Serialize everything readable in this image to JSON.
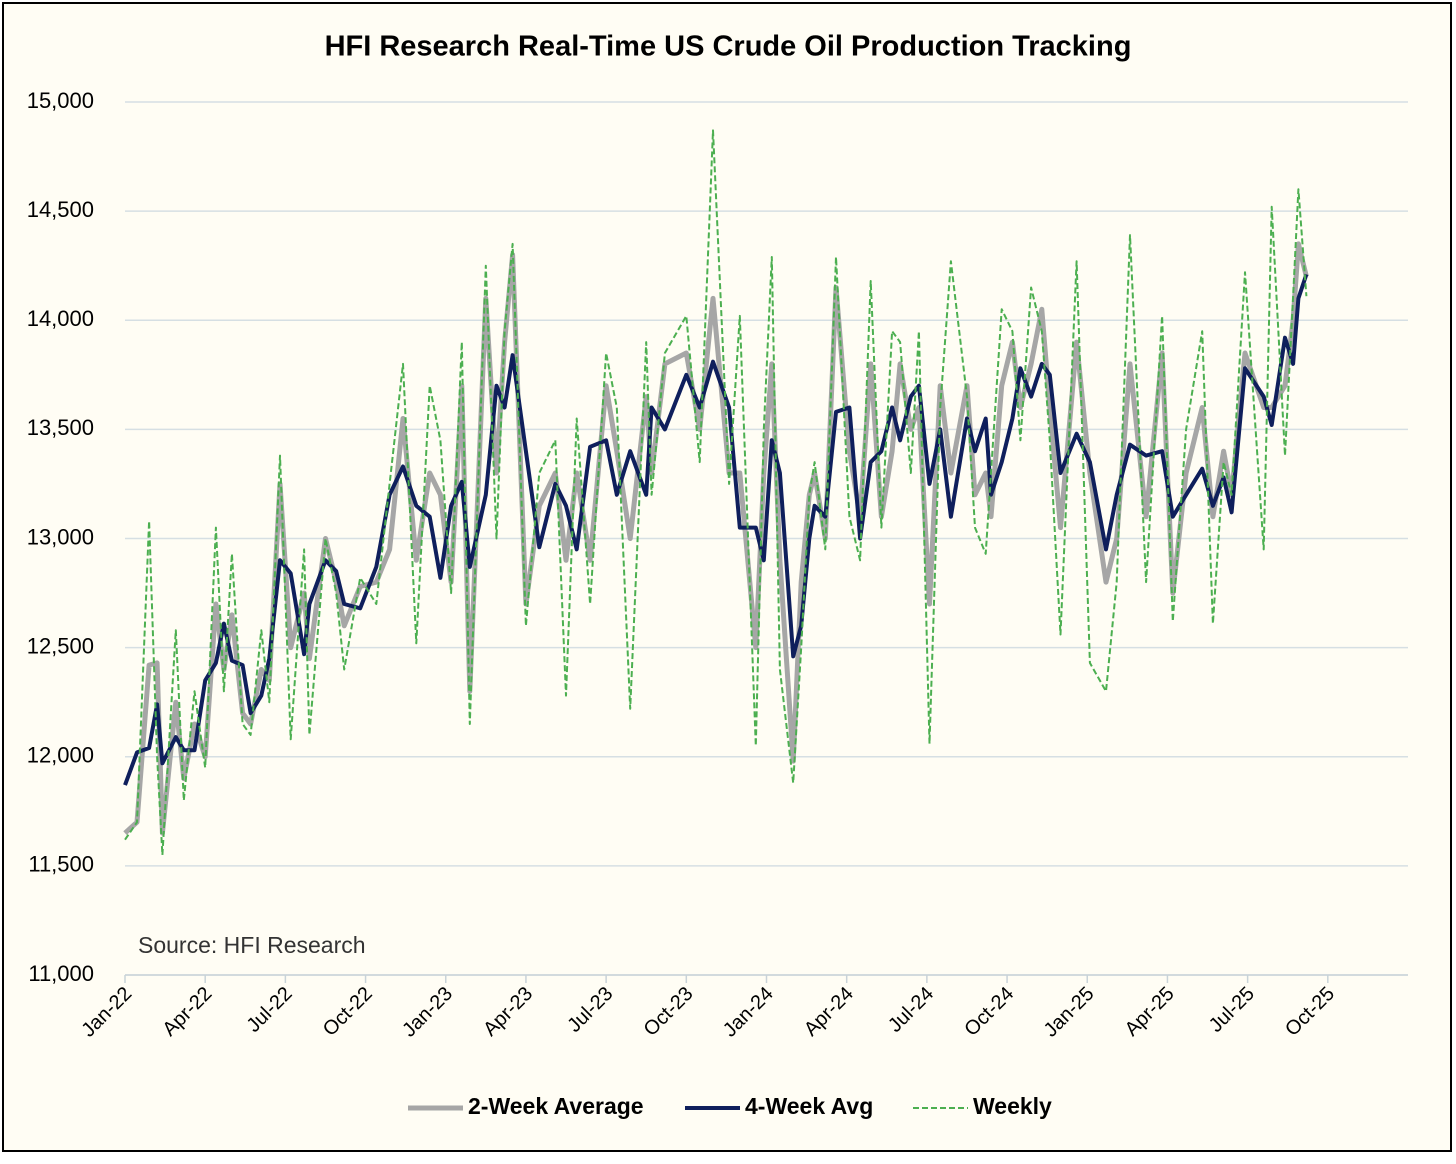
{
  "chart_data": {
    "type": "line",
    "title": "HFI Research Real-Time US Crude Oil Production Tracking",
    "annotation": "Source: HFI Research",
    "grid": true,
    "legend": "bottom",
    "xlim": [
      0,
      48
    ],
    "xticks": [
      {
        "value": 0,
        "label": "Jan-22"
      },
      {
        "value": 3,
        "label": "Apr-22"
      },
      {
        "value": 6,
        "label": "Jul-22"
      },
      {
        "value": 9,
        "label": "Oct-22"
      },
      {
        "value": 12,
        "label": "Jan-23"
      },
      {
        "value": 15,
        "label": "Apr-23"
      },
      {
        "value": 18,
        "label": "Jul-23"
      },
      {
        "value": 21,
        "label": "Oct-23"
      },
      {
        "value": 24,
        "label": "Jan-24"
      },
      {
        "value": 27,
        "label": "Apr-24"
      },
      {
        "value": 30,
        "label": "Jul-24"
      },
      {
        "value": 33,
        "label": "Oct-24"
      },
      {
        "value": 36,
        "label": "Jan-25"
      },
      {
        "value": 39,
        "label": "Apr-25"
      },
      {
        "value": 42,
        "label": "Jul-25"
      },
      {
        "value": 45,
        "label": "Oct-25"
      }
    ],
    "ylim": [
      11000,
      15000
    ],
    "yticks": [
      {
        "value": 11000,
        "label": "11,000"
      },
      {
        "value": 11500,
        "label": "11,500"
      },
      {
        "value": 12000,
        "label": "12,000"
      },
      {
        "value": 12500,
        "label": "12,500"
      },
      {
        "value": 13000,
        "label": "13,000"
      },
      {
        "value": 13500,
        "label": "13,500"
      },
      {
        "value": 14000,
        "label": "14,000"
      },
      {
        "value": 14500,
        "label": "14,500"
      },
      {
        "value": 15000,
        "label": "15,000"
      }
    ],
    "x": [
      0,
      0.45,
      0.9,
      1.2,
      1.4,
      1.9,
      2.2,
      2.6,
      3.0,
      3.4,
      3.7,
      4.0,
      4.4,
      4.7,
      5.1,
      5.4,
      5.8,
      6.2,
      6.7,
      6.9,
      7.5,
      7.9,
      8.2,
      8.8,
      9.4,
      9.9,
      10.4,
      10.9,
      11.4,
      11.8,
      12.2,
      12.6,
      12.9,
      13.5,
      13.9,
      14.2,
      14.5,
      15.0,
      15.5,
      16.1,
      16.5,
      16.9,
      17.4,
      18.0,
      18.4,
      18.9,
      19.5,
      19.7,
      20.2,
      21.0,
      21.5,
      22.0,
      22.6,
      23.0,
      23.6,
      23.9,
      24.2,
      24.5,
      25.0,
      25.3,
      25.6,
      25.8,
      26.2,
      26.6,
      27.1,
      27.5,
      27.9,
      28.3,
      28.7,
      29.0,
      29.4,
      29.7,
      30.1,
      30.5,
      30.9,
      31.5,
      31.8,
      32.2,
      32.4,
      32.8,
      33.2,
      33.5,
      33.9,
      34.3,
      34.6,
      35.0,
      35.6,
      36.1,
      36.7,
      37.1,
      37.6,
      38.2,
      38.8,
      39.2,
      39.7,
      40.3,
      40.7,
      41.1,
      41.4,
      41.9,
      42.6,
      42.9,
      43.4,
      43.7,
      43.9,
      44.2
    ],
    "series": [
      {
        "name": "2-Week Average",
        "color": "#a6a6a6",
        "values": [
          11650,
          11700,
          12420,
          12430,
          11650,
          12250,
          11900,
          12150,
          12000,
          12700,
          12400,
          12650,
          12200,
          12150,
          12400,
          12350,
          13250,
          12500,
          12750,
          12450,
          13000,
          12800,
          12600,
          12780,
          12800,
          12950,
          13550,
          12900,
          13300,
          13200,
          12800,
          13700,
          12300,
          14100,
          13300,
          13900,
          14300,
          12700,
          13150,
          13300,
          12900,
          13300,
          12900,
          13700,
          13400,
          13000,
          13650,
          13300,
          13800,
          13850,
          13500,
          14100,
          13300,
          13300,
          12500,
          13300,
          13800,
          12900,
          11980,
          12800,
          13200,
          13300,
          13000,
          14150,
          13400,
          13100,
          13800,
          13100,
          13400,
          13800,
          13500,
          13600,
          12700,
          13700,
          13300,
          13700,
          13200,
          13300,
          13100,
          13700,
          13900,
          13600,
          13800,
          14050,
          13600,
          13050,
          13900,
          13300,
          12800,
          13000,
          13800,
          13100,
          13850,
          12750,
          13300,
          13600,
          13100,
          13400,
          13200,
          13850,
          13600,
          13600,
          13700,
          14000,
          14350,
          14200
        ]
      },
      {
        "name": "4-Week Avg",
        "color": "#0f1f5c",
        "values": [
          11870,
          12020,
          12040,
          12240,
          11970,
          12090,
          12030,
          12030,
          12350,
          12430,
          12610,
          12440,
          12420,
          12200,
          12280,
          12450,
          12900,
          12840,
          12470,
          12700,
          12900,
          12850,
          12700,
          12680,
          12870,
          13200,
          13330,
          13150,
          13100,
          12820,
          13150,
          13260,
          12870,
          13200,
          13700,
          13600,
          13840,
          13400,
          12960,
          13250,
          13150,
          12950,
          13420,
          13450,
          13200,
          13400,
          13200,
          13600,
          13500,
          13750,
          13600,
          13810,
          13600,
          13050,
          13050,
          12900,
          13450,
          13300,
          12460,
          12600,
          13000,
          13150,
          13100,
          13580,
          13600,
          13000,
          13350,
          13400,
          13600,
          13450,
          13650,
          13700,
          13250,
          13500,
          13100,
          13550,
          13400,
          13550,
          13200,
          13350,
          13550,
          13780,
          13650,
          13800,
          13750,
          13300,
          13480,
          13350,
          12950,
          13200,
          13430,
          13380,
          13400,
          13100,
          13200,
          13320,
          13150,
          13280,
          13120,
          13780,
          13650,
          13520,
          13920,
          13800,
          14100,
          14210
        ]
      },
      {
        "name": "Weekly",
        "color": "#4caf50",
        "dash": true,
        "values": [
          11620,
          11700,
          13080,
          12000,
          11550,
          12580,
          11800,
          12300,
          11950,
          13050,
          12300,
          12930,
          12150,
          12100,
          12580,
          12250,
          13380,
          12080,
          12950,
          12100,
          13000,
          12750,
          12400,
          12820,
          12700,
          13250,
          13800,
          12520,
          13700,
          13450,
          12750,
          13900,
          12150,
          14250,
          13000,
          13950,
          14350,
          12600,
          13300,
          13450,
          12280,
          13550,
          12700,
          13850,
          13600,
          12220,
          13900,
          13200,
          13850,
          14020,
          13350,
          14870,
          13250,
          14020,
          12050,
          13500,
          14290,
          12400,
          11880,
          12500,
          13200,
          13350,
          12950,
          14290,
          13100,
          12900,
          14180,
          13050,
          13950,
          13900,
          13300,
          13950,
          12060,
          13600,
          14270,
          13650,
          13050,
          12930,
          13300,
          14050,
          13950,
          13450,
          14150,
          13950,
          13450,
          12560,
          14270,
          12430,
          12300,
          12800,
          14390,
          12800,
          14020,
          12620,
          13500,
          13950,
          12610,
          13350,
          13200,
          14220,
          12950,
          14520,
          13380,
          14110,
          14600,
          14110
        ]
      }
    ]
  }
}
